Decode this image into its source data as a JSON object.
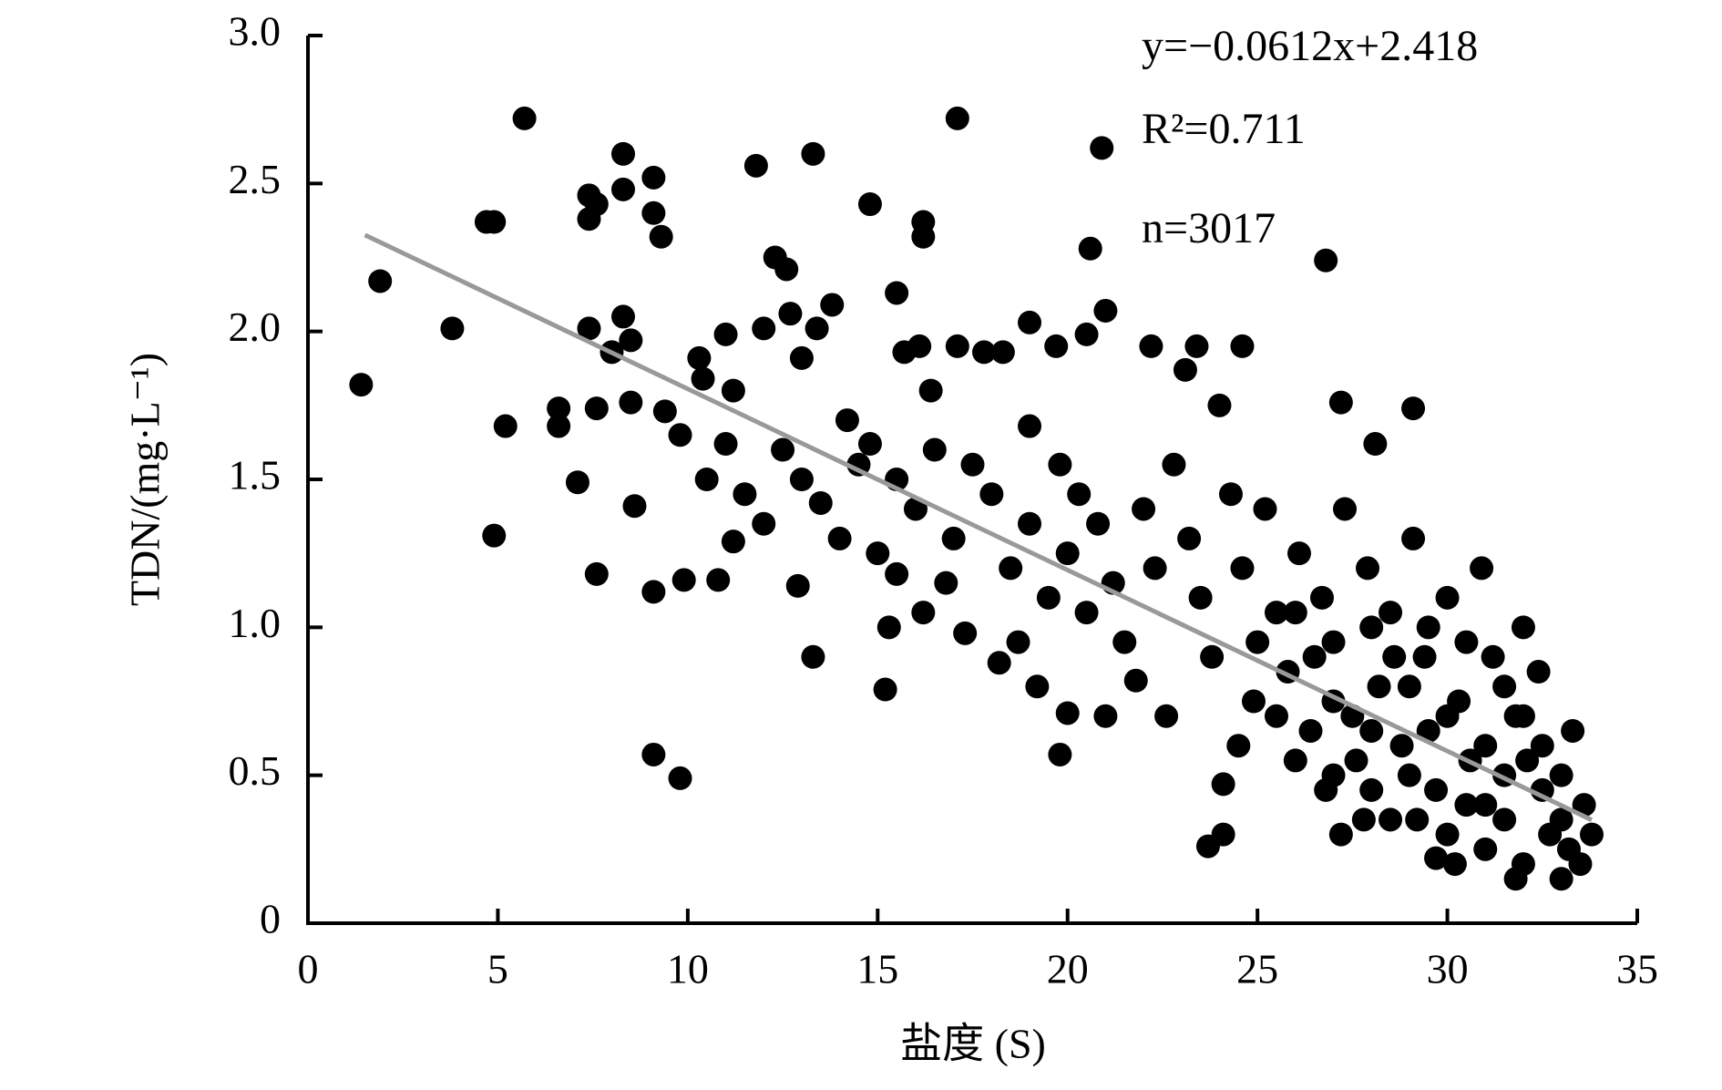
{
  "chart_data": {
    "type": "scatter",
    "xlabel": "盐度 (S)",
    "ylabel": "TDN/(mg·L⁻¹)",
    "annotations": [
      "y=−0.0612x+2.418",
      "R²=0.711",
      "n=3017"
    ],
    "color": "#000000",
    "xlim": [
      0,
      35
    ],
    "xticks": [
      0,
      5,
      10,
      15,
      20,
      25,
      30,
      35
    ],
    "ylim": [
      0,
      3
    ],
    "yticks": [
      0,
      0.5,
      {
        "value": 1,
        "label": "1.0"
      },
      1.5,
      {
        "value": 2,
        "label": "2.0"
      },
      2.5,
      {
        "value": 3,
        "label": "3.0"
      }
    ],
    "fit_line": {
      "color": "#999999",
      "x": [
        1.5,
        33.8
      ],
      "y": [
        2.326,
        0.349
      ]
    },
    "x": [
      1.4,
      1.9,
      3.8,
      4.7,
      4.9,
      5.7,
      5.2,
      4.9,
      6.6,
      6.6,
      7.1,
      7.4,
      7.4,
      7.6,
      7.4,
      7.6,
      8.3,
      8.3,
      8.3,
      8.5,
      9.1,
      9.1,
      9.3,
      9.1,
      9.1,
      9.8,
      8.0,
      7.6,
      8.5,
      8.6,
      9.4,
      9.8,
      10.3,
      10.4,
      9.9,
      10.8,
      11.0,
      11.2,
      11.2,
      11.8,
      12.0,
      12.3,
      12.6,
      12.7,
      13.0,
      12.9,
      13.3,
      13.4,
      13.8,
      13.3,
      14.8,
      15.5,
      16.2,
      16.2,
      15.2,
      15.3,
      16.1,
      15.7,
      16.4,
      17.1,
      17.1,
      17.8,
      18.3,
      19.0,
      19.7,
      20.5,
      20.6,
      20.9,
      21.0,
      19.8,
      20.0,
      22.2,
      23.1,
      23.4,
      24.6,
      26.8,
      27.2,
      28.1,
      29.1,
      23.7,
      24.1,
      24.1,
      27.2,
      29.7,
      10.5,
      11.0,
      11.5,
      12.0,
      12.5,
      13.0,
      13.5,
      14.0,
      14.5,
      15.0,
      14.2,
      14.8,
      15.5,
      16.0,
      16.5,
      17.0,
      17.5,
      18.0,
      18.5,
      19.0,
      15.5,
      16.2,
      16.8,
      17.3,
      18.2,
      18.7,
      19.2,
      19.5,
      20.0,
      20.5,
      19.0,
      19.8,
      20.3,
      20.8,
      21.2,
      21.5,
      21.8,
      22.0,
      22.3,
      22.6,
      21.0,
      22.8,
      23.2,
      23.5,
      23.8,
      24.0,
      24.3,
      24.6,
      24.9,
      25.2,
      25.5,
      25.8,
      26.1,
      26.4,
      26.7,
      27.0,
      27.3,
      27.6,
      27.9,
      28.2,
      28.5,
      28.8,
      29.1,
      29.4,
      29.7,
      30.0,
      30.3,
      30.6,
      30.9,
      31.2,
      31.5,
      31.8,
      32.1,
      32.4,
      32.7,
      33.0,
      33.3,
      33.5,
      33.6,
      33.8,
      25.0,
      26.0,
      27.0,
      28.0,
      29.0,
      30.0,
      31.0,
      32.0,
      33.0,
      32.5,
      24.5,
      25.5,
      26.5,
      27.5,
      28.5,
      29.5,
      30.5,
      31.5,
      32.0,
      31.0,
      28.0,
      29.0,
      30.0,
      31.0,
      32.0,
      33.0,
      26.0,
      27.0,
      28.0,
      29.5,
      30.5,
      31.5,
      32.5,
      33.2,
      30.2,
      31.8,
      29.2,
      28.6,
      27.8,
      26.8
    ],
    "values": [
      1.82,
      2.17,
      2.01,
      2.37,
      2.37,
      2.72,
      1.68,
      1.31,
      1.74,
      1.68,
      1.49,
      2.46,
      2.38,
      2.43,
      2.01,
      1.18,
      2.6,
      2.48,
      2.05,
      1.97,
      2.52,
      2.4,
      2.32,
      1.12,
      0.57,
      0.49,
      1.93,
      1.74,
      1.76,
      1.41,
      1.73,
      1.65,
      1.91,
      1.84,
      1.16,
      1.16,
      1.99,
      1.8,
      1.29,
      2.56,
      2.01,
      2.25,
      2.21,
      2.06,
      1.91,
      1.14,
      2.6,
      2.01,
      2.09,
      0.9,
      2.43,
      2.13,
      2.37,
      2.32,
      0.79,
      1.0,
      1.95,
      1.93,
      1.8,
      2.72,
      1.95,
      1.93,
      1.93,
      2.03,
      1.95,
      1.99,
      2.28,
      2.62,
      2.07,
      0.57,
      0.71,
      1.95,
      1.87,
      1.95,
      1.95,
      2.24,
      1.76,
      1.62,
      1.74,
      0.26,
      0.3,
      0.47,
      0.3,
      0.22,
      1.5,
      1.62,
      1.45,
      1.35,
      1.6,
      1.5,
      1.42,
      1.3,
      1.55,
      1.25,
      1.7,
      1.62,
      1.5,
      1.4,
      1.6,
      1.3,
      1.55,
      1.45,
      1.2,
      1.35,
      1.18,
      1.05,
      1.15,
      0.98,
      0.88,
      0.95,
      0.8,
      1.1,
      1.25,
      1.05,
      1.68,
      1.55,
      1.45,
      1.35,
      1.15,
      0.95,
      0.82,
      1.4,
      1.2,
      0.7,
      0.7,
      1.55,
      1.3,
      1.1,
      0.9,
      1.75,
      1.45,
      1.2,
      0.75,
      1.4,
      1.05,
      0.85,
      1.25,
      0.65,
      1.1,
      0.95,
      1.4,
      0.55,
      1.2,
      0.8,
      1.05,
      0.6,
      1.3,
      0.9,
      0.45,
      1.1,
      0.75,
      0.55,
      1.2,
      0.9,
      0.35,
      0.7,
      0.55,
      0.85,
      0.3,
      0.5,
      0.65,
      0.2,
      0.4,
      0.3,
      0.95,
      0.55,
      0.75,
      0.45,
      0.8,
      0.3,
      0.6,
      0.2,
      0.15,
      0.45,
      0.6,
      0.7,
      0.9,
      0.7,
      0.35,
      0.65,
      0.95,
      0.5,
      1.0,
      0.25,
      1.0,
      0.5,
      0.7,
      0.4,
      0.7,
      0.35,
      1.05,
      0.5,
      0.65,
      1.0,
      0.4,
      0.8,
      0.6,
      0.25,
      0.2,
      0.15,
      0.35,
      0.9,
      0.35,
      0.45
    ]
  }
}
